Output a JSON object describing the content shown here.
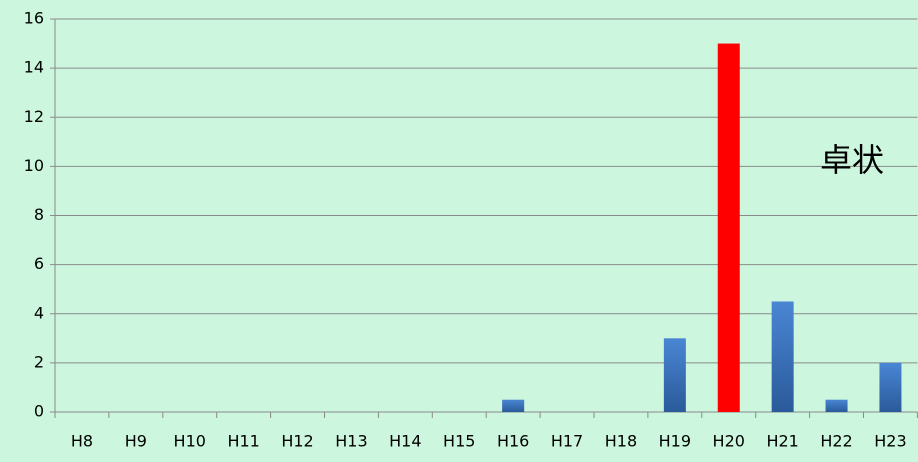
{
  "chart_data": {
    "type": "bar",
    "categories": [
      "H8",
      "H9",
      "H10",
      "H11",
      "H12",
      "H13",
      "H14",
      "H15",
      "H16",
      "H17",
      "H18",
      "H19",
      "H20",
      "H21",
      "H22",
      "H23"
    ],
    "values": [
      0,
      0,
      0,
      0,
      0,
      0,
      0,
      0,
      0.5,
      0,
      0,
      3,
      15,
      4.5,
      0.5,
      2
    ],
    "colors": [
      "#3b70bf",
      "#3b70bf",
      "#3b70bf",
      "#3b70bf",
      "#3b70bf",
      "#3b70bf",
      "#3b70bf",
      "#3b70bf",
      "#3b70bf",
      "#3b70bf",
      "#3b70bf",
      "#3b70bf",
      "#ff0000",
      "#3b70bf",
      "#3b70bf",
      "#3b70bf"
    ],
    "annotation": "卓状",
    "ylim": [
      0,
      16
    ],
    "yticks": [
      0,
      2,
      4,
      6,
      8,
      10,
      12,
      14,
      16
    ],
    "grid": true
  }
}
